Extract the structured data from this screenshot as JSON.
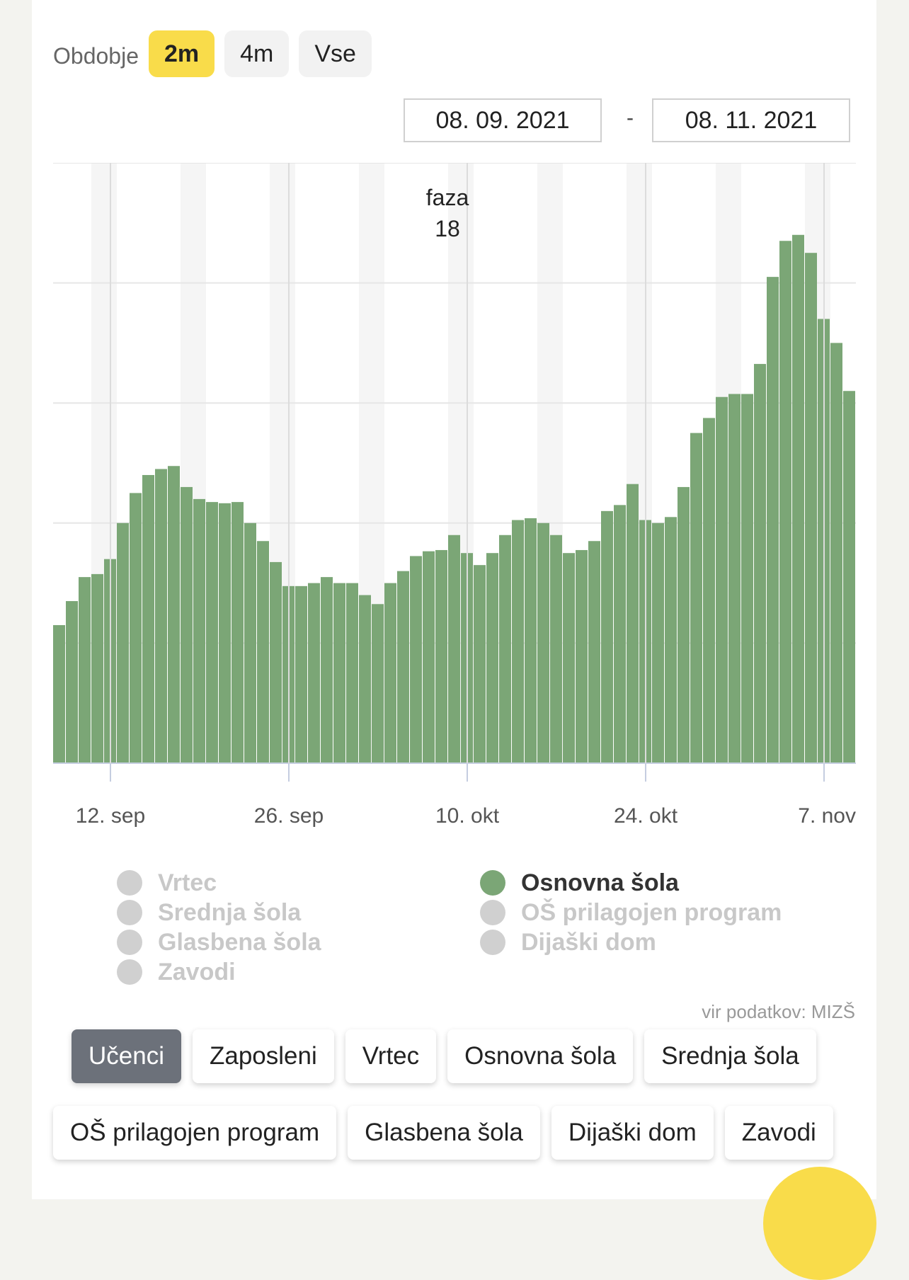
{
  "period": {
    "label": "Obdobje",
    "options": [
      "2m",
      "4m",
      "Vse"
    ],
    "active": "2m"
  },
  "date_range": {
    "from": "08. 09. 2021",
    "separator": "-",
    "to": "08. 11. 2021"
  },
  "annotation": {
    "line1": "faza",
    "line2": "18"
  },
  "chart_data": {
    "type": "bar",
    "x_start": "2021-09-08",
    "x_end": "2021-11-08",
    "x_ticks": [
      "12. sep",
      "26. sep",
      "10. okt",
      "24. okt",
      "7. nov"
    ],
    "series": [
      {
        "name": "Osnovna šola",
        "color": "#7ba676",
        "values": [
          23,
          27,
          31,
          31.5,
          34,
          40,
          45,
          48,
          49,
          49.5,
          46,
          44,
          43.5,
          43.3,
          43.5,
          40,
          37,
          33.5,
          29.5,
          29.5,
          30,
          31,
          30,
          30,
          28,
          26.5,
          30,
          32,
          34.5,
          35.3,
          35.5,
          38,
          35,
          33,
          35,
          38,
          40.5,
          40.8,
          40,
          38,
          35,
          35.5,
          37,
          42,
          43,
          46.5,
          40.5,
          40,
          41,
          46,
          55,
          57.5,
          61,
          61.5,
          61.5,
          66.5,
          81,
          87,
          88,
          85,
          74,
          70,
          62
        ]
      }
    ],
    "xlabel": "",
    "ylabel": "",
    "ylim": [
      0,
      100
    ],
    "grid": true,
    "legend_position": "bottom"
  },
  "legend": {
    "left": [
      "Vrtec",
      "Srednja šola",
      "Glasbena šola",
      "Zavodi"
    ],
    "right": [
      "Osnovna šola",
      "OŠ prilagojen program",
      "Dijaški dom"
    ],
    "active": "Osnovna šola"
  },
  "source": "vir podatkov: MIZŠ",
  "tabs": {
    "row1": [
      "Učenci",
      "Zaposleni",
      "Vrtec",
      "Osnovna šola",
      "Srednja šola"
    ],
    "row2": [
      "OŠ prilagojen program",
      "Glasbena šola",
      "Dijaški dom",
      "Zavodi"
    ],
    "active": "Učenci"
  },
  "colors": {
    "accent": "#f9dc4a",
    "series": "#7ba676",
    "active_tab": "#6c717a",
    "legend_inactive": "#d0d0d0"
  }
}
